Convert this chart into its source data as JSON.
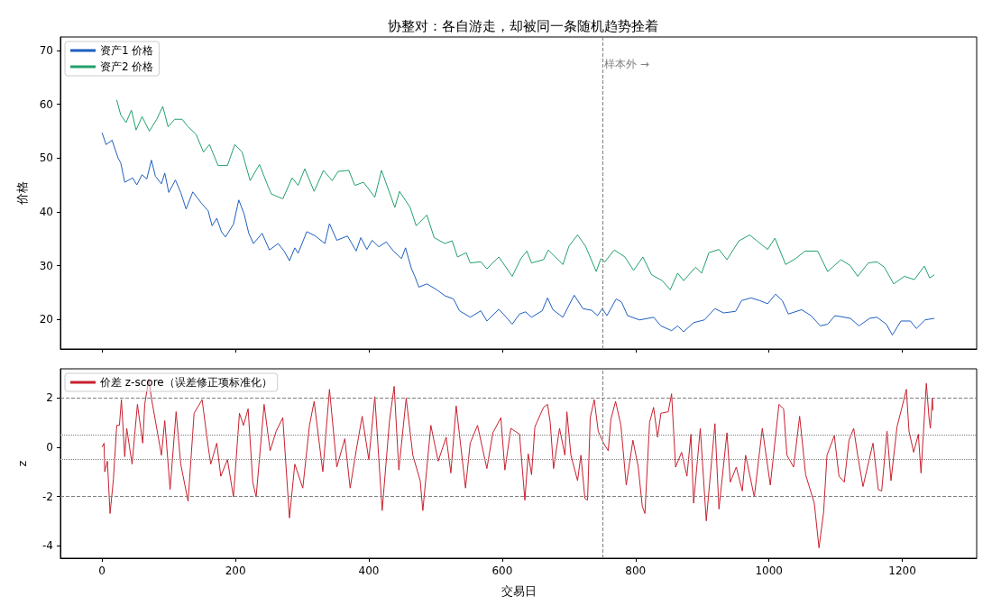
{
  "chart_data": [
    {
      "type": "line",
      "title": "协整对：各自游走，却被同一条随机趋势拴着",
      "ylabel": "价格",
      "legend": "top left",
      "grid": false,
      "tick_labels": "y",
      "xlim": [
        -62.45,
        1311.45
      ],
      "xticks": [
        0,
        200,
        400,
        600,
        800,
        1000,
        1200
      ],
      "ylim": [
        14.5,
        72.5
      ],
      "yticks": [
        20,
        30,
        40,
        50,
        60,
        70
      ],
      "ref_lines": [
        {
          "axis": "x",
          "value": 750,
          "color": "#808080",
          "line_style": "dashed"
        }
      ],
      "annotations": [
        {
          "text": "样本外 →",
          "x": 753,
          "y": 67.5
        }
      ],
      "series": [
        {
          "name": "资产1 价格",
          "color": "#1f5fbf",
          "x": [
            0,
            6,
            15,
            24,
            28,
            34,
            46,
            52,
            60,
            67,
            74,
            80,
            89,
            94,
            100,
            110,
            118,
            126,
            136,
            149,
            159,
            165,
            172,
            179,
            185,
            197,
            205,
            213,
            220,
            227,
            240,
            251,
            264,
            273,
            281,
            289,
            294,
            307,
            320,
            334,
            341,
            352,
            368,
            381,
            388,
            397,
            405,
            415,
            426,
            437,
            449,
            455,
            464,
            469,
            475,
            487,
            502,
            514,
            527,
            536,
            552,
            568,
            577,
            595,
            606,
            615,
            626,
            635,
            644,
            660,
            668,
            676,
            691,
            700,
            708,
            721,
            734,
            743,
            750,
            757,
            771,
            779,
            788,
            806,
            827,
            838,
            854,
            863,
            872,
            887,
            903,
            919,
            932,
            950,
            959,
            973,
            986,
            998,
            1010,
            1020,
            1029,
            1049,
            1063,
            1077,
            1088,
            1099,
            1122,
            1135,
            1151,
            1162,
            1176,
            1185,
            1198,
            1212,
            1221,
            1234,
            1248
          ],
          "values": [
            54.7,
            52.5,
            53.3,
            50.0,
            49.1,
            45.5,
            46.3,
            45.0,
            46.9,
            46.1,
            49.6,
            46.6,
            45.2,
            47.2,
            43.6,
            45.9,
            43.6,
            40.5,
            43.7,
            41.6,
            40.2,
            37.4,
            38.8,
            36.3,
            35.3,
            37.7,
            42.2,
            39.6,
            36.0,
            34.1,
            36.0,
            32.9,
            34.1,
            32.7,
            30.9,
            33.3,
            32.3,
            36.3,
            35.5,
            34.1,
            37.8,
            34.7,
            35.5,
            32.7,
            35.2,
            33.0,
            34.7,
            33.5,
            34.4,
            32.7,
            31.3,
            33.3,
            29.4,
            28.0,
            26.0,
            26.6,
            25.5,
            24.4,
            23.8,
            21.6,
            20.4,
            21.6,
            19.7,
            21.9,
            20.4,
            19.1,
            21.0,
            21.4,
            20.4,
            21.6,
            24.0,
            21.8,
            20.4,
            22.6,
            24.5,
            22.0,
            21.7,
            20.7,
            22.0,
            20.7,
            23.8,
            23.2,
            20.7,
            19.9,
            20.4,
            18.8,
            17.9,
            18.8,
            17.7,
            19.4,
            19.9,
            22.0,
            21.2,
            21.5,
            23.5,
            24.0,
            23.5,
            22.9,
            24.7,
            23.5,
            21.0,
            21.8,
            20.7,
            18.8,
            19.1,
            20.7,
            20.2,
            18.8,
            20.2,
            20.4,
            19.1,
            17.1,
            19.7,
            19.7,
            18.3,
            19.9,
            20.2
          ]
        },
        {
          "name": "资产2 价格",
          "color": "#22a06b",
          "x": [
            22,
            28,
            36,
            44,
            51,
            60,
            71,
            82,
            91,
            99,
            109,
            120,
            129,
            141,
            152,
            161,
            174,
            188,
            199,
            210,
            222,
            236,
            249,
            254,
            271,
            285,
            294,
            304,
            318,
            332,
            345,
            354,
            370,
            379,
            392,
            409,
            419,
            439,
            446,
            462,
            471,
            487,
            498,
            514,
            525,
            533,
            546,
            552,
            568,
            577,
            595,
            615,
            628,
            637,
            644,
            662,
            669,
            691,
            700,
            713,
            725,
            741,
            748,
            754,
            768,
            784,
            797,
            811,
            824,
            840,
            852,
            863,
            872,
            890,
            899,
            910,
            925,
            937,
            955,
            971,
            982,
            998,
            1009,
            1025,
            1040,
            1054,
            1073,
            1088,
            1108,
            1122,
            1133,
            1149,
            1162,
            1173,
            1187,
            1203,
            1218,
            1233,
            1241,
            1248
          ],
          "values": [
            60.8,
            58.0,
            56.6,
            58.9,
            55.2,
            57.7,
            55.0,
            57.2,
            59.6,
            55.8,
            57.2,
            57.2,
            55.8,
            54.4,
            51.1,
            52.5,
            48.6,
            48.6,
            52.5,
            51.1,
            45.8,
            48.8,
            44.7,
            43.3,
            42.4,
            46.3,
            44.9,
            48.0,
            43.8,
            47.7,
            45.8,
            47.5,
            47.7,
            44.9,
            45.5,
            42.7,
            47.7,
            40.8,
            43.8,
            40.8,
            37.4,
            39.4,
            35.2,
            34.1,
            34.6,
            31.6,
            32.4,
            30.5,
            30.7,
            29.4,
            31.6,
            28.0,
            31.3,
            32.7,
            30.5,
            31.1,
            32.9,
            30.2,
            33.6,
            35.7,
            33.6,
            28.9,
            31.3,
            30.7,
            32.9,
            31.6,
            29.1,
            31.6,
            28.3,
            27.2,
            25.5,
            28.6,
            27.2,
            29.7,
            28.6,
            32.4,
            33.0,
            31.1,
            34.6,
            35.7,
            34.6,
            33.0,
            35.1,
            30.2,
            31.3,
            32.7,
            32.7,
            28.9,
            31.1,
            30.0,
            28.0,
            30.5,
            30.7,
            29.7,
            26.6,
            28.0,
            27.4,
            29.9,
            27.7,
            28.3
          ]
        }
      ]
    },
    {
      "type": "line",
      "xlabel": "交易日",
      "ylabel": "z",
      "legend": "top left",
      "grid": false,
      "xlim": [
        -62.45,
        1311.45
      ],
      "xticks": [
        0,
        200,
        400,
        600,
        800,
        1000,
        1200
      ],
      "ylim": [
        -4.5,
        3.17
      ],
      "yticks": [
        -4,
        -2,
        0,
        2
      ],
      "ref_lines": [
        {
          "axis": "y",
          "value": 2,
          "color": "#808080",
          "line_style": "dashed"
        },
        {
          "axis": "y",
          "value": -2,
          "color": "#808080",
          "line_style": "dashed"
        },
        {
          "axis": "y",
          "value": 0.5,
          "color": "#808080",
          "line_style": "dotted"
        },
        {
          "axis": "y",
          "value": -0.5,
          "color": "#808080",
          "line_style": "dotted"
        },
        {
          "axis": "x",
          "value": 750,
          "color": "#808080",
          "line_style": "dashed"
        }
      ],
      "series": [
        {
          "name": "价差 z-score（误差修正项标准化）",
          "color": "#c8202f",
          "x": [
            0,
            3,
            4,
            8,
            12,
            17,
            22,
            26,
            29,
            34,
            37,
            45,
            53,
            61,
            64,
            70,
            74,
            82,
            89,
            94,
            102,
            111,
            118,
            129,
            138,
            150,
            159,
            163,
            172,
            178,
            188,
            197,
            206,
            212,
            219,
            226,
            231,
            243,
            252,
            261,
            271,
            281,
            289,
            301,
            311,
            318,
            331,
            341,
            352,
            364,
            372,
            381,
            390,
            400,
            409,
            420,
            431,
            438,
            445,
            456,
            466,
            477,
            481,
            493,
            504,
            516,
            523,
            531,
            545,
            552,
            563,
            577,
            586,
            598,
            604,
            613,
            626,
            634,
            639,
            644,
            649,
            662,
            668,
            672,
            677,
            686,
            694,
            697,
            703,
            713,
            718,
            724,
            728,
            732,
            738,
            744,
            752,
            759,
            763,
            770,
            778,
            786,
            796,
            804,
            810,
            814,
            821,
            827,
            833,
            838,
            849,
            854,
            860,
            869,
            877,
            883,
            887,
            897,
            906,
            919,
            925,
            937,
            942,
            951,
            960,
            965,
            978,
            990,
            1002,
            1015,
            1022,
            1027,
            1037,
            1046,
            1055,
            1068,
            1075,
            1082,
            1087,
            1098,
            1105,
            1113,
            1120,
            1127,
            1133,
            1141,
            1156,
            1164,
            1169,
            1177,
            1183,
            1192,
            1200,
            1206,
            1210,
            1217,
            1224,
            1228,
            1236,
            1240,
            1242,
            1245,
            1246
          ],
          "values": [
            0,
            0.16,
            -1.0,
            -0.57,
            -2.69,
            -1.3,
            0.88,
            0.88,
            1.92,
            -0.39,
            0.76,
            -0.69,
            1.73,
            0.16,
            1.73,
            2.76,
            1.98,
            0.76,
            -0.33,
            1.07,
            -1.72,
            1.43,
            -0.69,
            -2.2,
            1.37,
            1.92,
            0.04,
            -0.69,
            0.16,
            -1.18,
            -0.51,
            -2.02,
            1.37,
            0.88,
            1.55,
            -1.42,
            -2.02,
            1.73,
            -0.15,
            0.64,
            1.19,
            -2.87,
            -0.69,
            -1.66,
            0.88,
            1.85,
            -1.0,
            2.34,
            -0.81,
            0.34,
            -1.66,
            -0.15,
            1.25,
            -0.51,
            2.04,
            -2.57,
            1.07,
            2.46,
            -0.93,
            1.98,
            -0.33,
            -1.36,
            -2.57,
            0.88,
            -0.57,
            0.4,
            -1.05,
            1.67,
            -1.66,
            0.16,
            0.88,
            -0.87,
            0.58,
            1.19,
            -0.93,
            0.76,
            0.52,
            -2.15,
            -0.27,
            -1.12,
            0.82,
            1.61,
            1.73,
            1.0,
            -0.87,
            0.76,
            -0.33,
            1.43,
            -0.33,
            -1.36,
            -0.33,
            -2.08,
            -2.15,
            1.19,
            1.92,
            0.64,
            0.16,
            -0.15,
            1.13,
            1.85,
            0.88,
            -1.54,
            0.28,
            -0.81,
            -2.39,
            -2.69,
            1.0,
            1.61,
            0.4,
            1.37,
            1.43,
            2.16,
            -0.81,
            -0.21,
            -1.18,
            0.52,
            -2.27,
            0.76,
            -2.99,
            0.95,
            -2.51,
            0.58,
            -1.42,
            -0.81,
            -1.78,
            -0.33,
            -2.02,
            0.76,
            -1.54,
            1.73,
            1.55,
            -0.33,
            -0.81,
            1.25,
            -1.12,
            -2.27,
            -4.08,
            -2.63,
            -0.33,
            0.46,
            -1.18,
            -1.42,
            0.28,
            0.76,
            -0.33,
            -1.6,
            0.16,
            -1.72,
            -1.78,
            0.64,
            -1.36,
            0.82,
            1.67,
            2.34,
            0.64,
            -0.21,
            0.52,
            -1.05,
            2.58,
            1.19,
            0.76,
            1.98,
            1.49
          ]
        }
      ]
    }
  ]
}
